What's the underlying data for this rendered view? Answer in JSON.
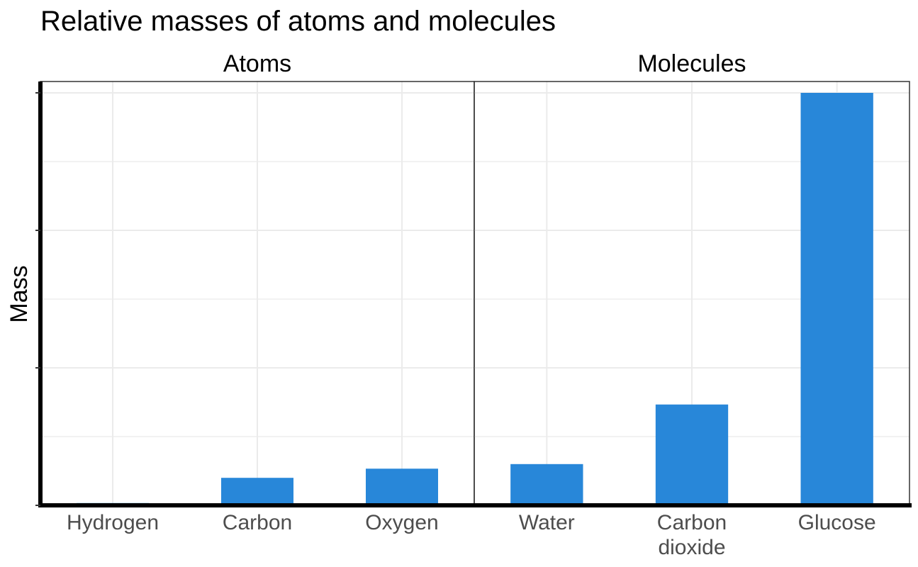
{
  "chart_data": {
    "type": "bar",
    "title": "Relative masses of atoms and molecules",
    "ylabel": "Mass",
    "xlabel": "",
    "ylim": [
      0,
      180
    ],
    "grid": true,
    "bar_color": "#2887d9",
    "facets": [
      {
        "label": "Atoms",
        "categories": [
          "Hydrogen",
          "Carbon",
          "Oxygen"
        ],
        "values": [
          1,
          12,
          16
        ]
      },
      {
        "label": "Molecules",
        "categories": [
          "Water",
          "Carbon\ndioxide",
          "Glucose"
        ],
        "values": [
          18,
          44,
          180
        ]
      }
    ]
  }
}
